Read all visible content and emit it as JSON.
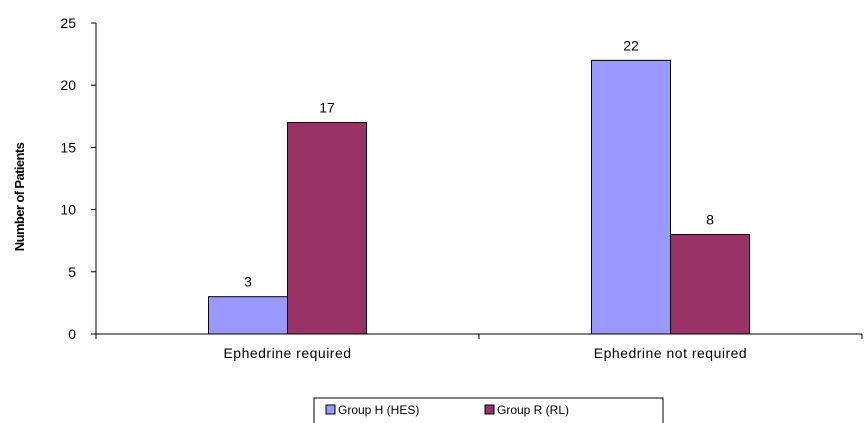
{
  "chart_data": {
    "type": "bar",
    "title": "",
    "xlabel": "",
    "ylabel": "Number of Patients",
    "ylim": [
      0,
      25
    ],
    "yticks": [
      0,
      5,
      10,
      15,
      20,
      25
    ],
    "categories": [
      "Ephedrine required",
      "Ephedrine not required"
    ],
    "series": [
      {
        "name": "Group H (HES)",
        "values": [
          3,
          22
        ],
        "color": "#9999ff"
      },
      {
        "name": "Group R (RL)",
        "values": [
          17,
          8
        ],
        "color": "#993366"
      }
    ],
    "grid": false,
    "legend": "bottom-center",
    "data_labels": true
  }
}
